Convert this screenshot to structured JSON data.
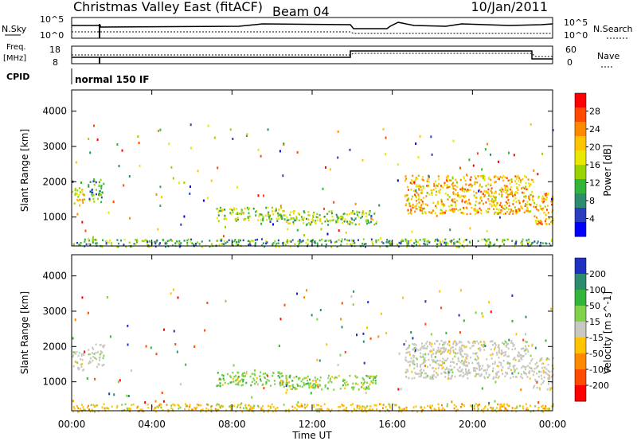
{
  "header": {
    "title": "Christmas Valley East (fitACF)",
    "beam": "Beam 04",
    "date": "10/Jan/2011"
  },
  "panels": {
    "nsky_label": "N.Sky",
    "nsky_ticks": [
      "10^5",
      "10^0"
    ],
    "nsearch_label": "N.Search",
    "nsearch_ticks": [
      "10^5",
      "10^0"
    ],
    "freq_label_1": "Freq.",
    "freq_label_2": "[MHz]",
    "freq_ticks": [
      "18",
      "8"
    ],
    "nave_label": "Nave",
    "nave_ticks": [
      "60",
      "0"
    ],
    "cpid_label": "CPID",
    "cpid_text": "normal 150 IF"
  },
  "chart_data": [
    {
      "type": "heatmap",
      "panel": "power",
      "ylabel": "Slant Range [km]",
      "xlabel": "Time UT",
      "x_ticks": [
        "00:00",
        "04:00",
        "08:00",
        "12:00",
        "16:00",
        "20:00",
        "00:00"
      ],
      "xlim_hours": [
        0,
        24
      ],
      "ylim": [
        180,
        4600
      ],
      "y_ticks": [
        1000,
        2000,
        3000,
        4000
      ],
      "colorbar_label": "Power [dB]",
      "colorbar_ticks": [
        "28",
        "24",
        "20",
        "16",
        "12",
        "8",
        "4"
      ],
      "colorbar_colors": [
        "#ff0000",
        "#ff4a00",
        "#ff8a00",
        "#ffc400",
        "#e8e800",
        "#9ad400",
        "#33b53c",
        "#2e8b6e",
        "#2a3fc0",
        "#0000ff"
      ],
      "echo_regions": [
        {
          "t_start": 0.0,
          "t_end": 0.6,
          "range_min": 1350,
          "range_max": 1900,
          "value": 16
        },
        {
          "t_start": 0.8,
          "t_end": 1.6,
          "range_min": 1450,
          "range_max": 2100,
          "value": 10
        },
        {
          "t_start": 7.2,
          "t_end": 10.5,
          "range_min": 900,
          "range_max": 1300,
          "value": 14
        },
        {
          "t_start": 10.5,
          "t_end": 15.2,
          "range_min": 800,
          "range_max": 1200,
          "value": 12
        },
        {
          "t_start": 16.6,
          "t_end": 23.0,
          "range_min": 1100,
          "range_max": 2200,
          "value": 18
        },
        {
          "t_start": 23.0,
          "t_end": 24.0,
          "range_min": 800,
          "range_max": 1700,
          "value": 20
        },
        {
          "t_start": 0.0,
          "t_end": 24.0,
          "range_min": 180,
          "range_max": 400,
          "value": 8
        }
      ]
    },
    {
      "type": "heatmap",
      "panel": "velocity",
      "ylabel": "Slant Range [km]",
      "xlabel": "Time UT",
      "x_ticks": [
        "00:00",
        "04:00",
        "08:00",
        "12:00",
        "16:00",
        "20:00",
        "00:00"
      ],
      "xlim_hours": [
        0,
        24
      ],
      "ylim": [
        180,
        4600
      ],
      "y_ticks": [
        1000,
        2000,
        3000,
        4000
      ],
      "colorbar_label": "Velocity [m s^-1]",
      "colorbar_ticks": [
        "200",
        "100",
        "50",
        "15",
        "-15",
        "-50",
        "-100",
        "-200"
      ],
      "colorbar_colors": [
        "#2030c0",
        "#2e8b6e",
        "#33b53c",
        "#7fd24a",
        "#c8c8c0",
        "#ffc400",
        "#ff8a00",
        "#ff4a00",
        "#ff0000"
      ],
      "echo_regions": [
        {
          "t_start": 0.0,
          "t_end": 0.6,
          "range_min": 1350,
          "range_max": 1900,
          "value": 0
        },
        {
          "t_start": 0.8,
          "t_end": 1.6,
          "range_min": 1450,
          "range_max": 2100,
          "value": 0
        },
        {
          "t_start": 7.2,
          "t_end": 10.5,
          "range_min": 900,
          "range_max": 1300,
          "value": 40
        },
        {
          "t_start": 10.5,
          "t_end": 15.2,
          "range_min": 800,
          "range_max": 1200,
          "value": 40
        },
        {
          "t_start": 16.6,
          "t_end": 23.0,
          "range_min": 1100,
          "range_max": 2200,
          "value": 0
        },
        {
          "t_start": 23.0,
          "t_end": 24.0,
          "range_min": 800,
          "range_max": 1700,
          "value": 0
        },
        {
          "t_start": 0.0,
          "t_end": 24.0,
          "range_min": 180,
          "range_max": 400,
          "value": -40
        }
      ]
    }
  ]
}
